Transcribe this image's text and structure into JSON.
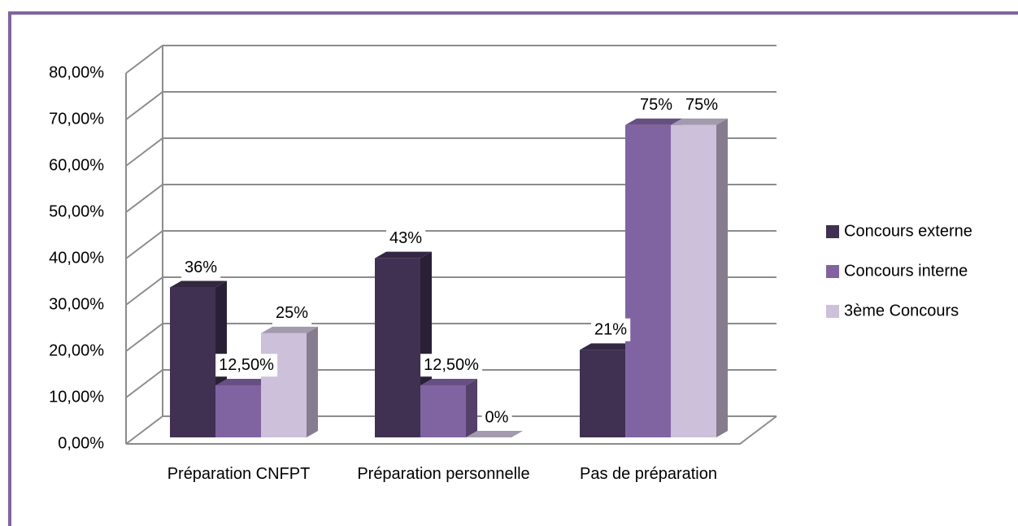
{
  "chart_data": {
    "type": "bar3d",
    "categories": [
      "Préparation CNFPT",
      "Préparation personnelle",
      "Pas de préparation"
    ],
    "series": [
      {
        "name": "Concours externe",
        "color": "#403152",
        "values": [
          36,
          43,
          21
        ],
        "value_labels": [
          "36%",
          "43%",
          "21%"
        ]
      },
      {
        "name": "Concours interne",
        "color": "#8064a2",
        "values": [
          12.5,
          12.5,
          75
        ],
        "value_labels": [
          "12,50%",
          "12,50%",
          "75%"
        ]
      },
      {
        "name": "3ème Concours",
        "color": "#ccc0da",
        "values": [
          25,
          0,
          75
        ],
        "value_labels": [
          "25%",
          "0%",
          "75%"
        ]
      }
    ],
    "ylim": [
      0,
      80
    ],
    "yticks": [
      {
        "value": 0,
        "label": "0,00%"
      },
      {
        "value": 10,
        "label": "10,00%"
      },
      {
        "value": 20,
        "label": "20,00%"
      },
      {
        "value": 30,
        "label": "30,00%"
      },
      {
        "value": 40,
        "label": "40,00%"
      },
      {
        "value": 50,
        "label": "50,00%"
      },
      {
        "value": 60,
        "label": "60,00%"
      },
      {
        "value": 70,
        "label": "70,00%"
      },
      {
        "value": 80,
        "label": "80,00%"
      }
    ],
    "grid": true,
    "legend": "right"
  }
}
